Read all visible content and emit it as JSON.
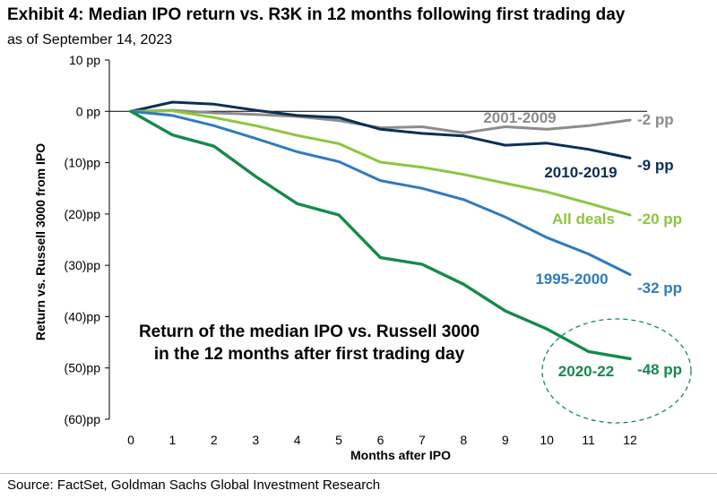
{
  "header": {
    "title": "Exhibit 4: Median IPO return vs. R3K in 12 months following first trading day",
    "subtitle": "as of September 14, 2023"
  },
  "footer": {
    "source": "Source: FactSet, Goldman Sachs Global Investment Research"
  },
  "chart_data": {
    "type": "line",
    "xlabel": "Months after IPO",
    "ylabel": "Return vs. Russell 3000 from IPO",
    "x": [
      0,
      1,
      2,
      3,
      4,
      5,
      6,
      7,
      8,
      9,
      10,
      11,
      12
    ],
    "ylim": [
      -60,
      10
    ],
    "yticks": [
      10,
      0,
      -10,
      -20,
      -30,
      -40,
      -50,
      -60
    ],
    "ytick_labels": [
      "10 pp",
      "0 pp",
      "(10)pp",
      "(20)pp",
      "(30)pp",
      "(40)pp",
      "(50)pp",
      "(60)pp"
    ],
    "grid": false,
    "annotation": "Return of the median IPO vs. Russell 3000 in the 12 months after first trading day",
    "annotation_lines": [
      "Return of the median IPO vs. Russell 3000",
      "in the 12 months after first trading day"
    ],
    "series": [
      {
        "name": "2001-2009",
        "color": "#8c8c8c",
        "values": [
          0,
          0.2,
          -0.3,
          -0.6,
          -1.0,
          -1.8,
          -3.2,
          -3.0,
          -4.2,
          -3.0,
          -3.5,
          -2.8,
          -1.7
        ],
        "end_label": "-2 pp"
      },
      {
        "name": "2010-2019",
        "color": "#0b2f57",
        "values": [
          0,
          1.8,
          1.4,
          0.2,
          -0.8,
          -1.2,
          -3.5,
          -4.3,
          -4.8,
          -6.6,
          -6.2,
          -7.4,
          -9.1
        ],
        "end_label": "-9 pp"
      },
      {
        "name": "All deals",
        "color": "#8cc63f",
        "values": [
          0,
          0.1,
          -1.2,
          -2.8,
          -4.7,
          -6.3,
          -9.9,
          -10.9,
          -12.3,
          -14.0,
          -15.7,
          -17.9,
          -20.2
        ],
        "end_label": "-20 pp"
      },
      {
        "name": "1995-2000",
        "color": "#2f7bbd",
        "values": [
          0,
          -0.8,
          -2.8,
          -5.3,
          -7.9,
          -9.8,
          -13.5,
          -15.0,
          -17.2,
          -20.6,
          -24.6,
          -27.8,
          -31.8
        ],
        "end_label": "-32 pp"
      },
      {
        "name": "2020-22",
        "color": "#158a4c",
        "values": [
          0,
          -4.6,
          -6.8,
          -12.7,
          -18.0,
          -20.2,
          -28.5,
          -29.8,
          -33.7,
          -38.9,
          -42.4,
          -46.8,
          -48.2
        ],
        "end_label": "-48 pp"
      }
    ]
  }
}
